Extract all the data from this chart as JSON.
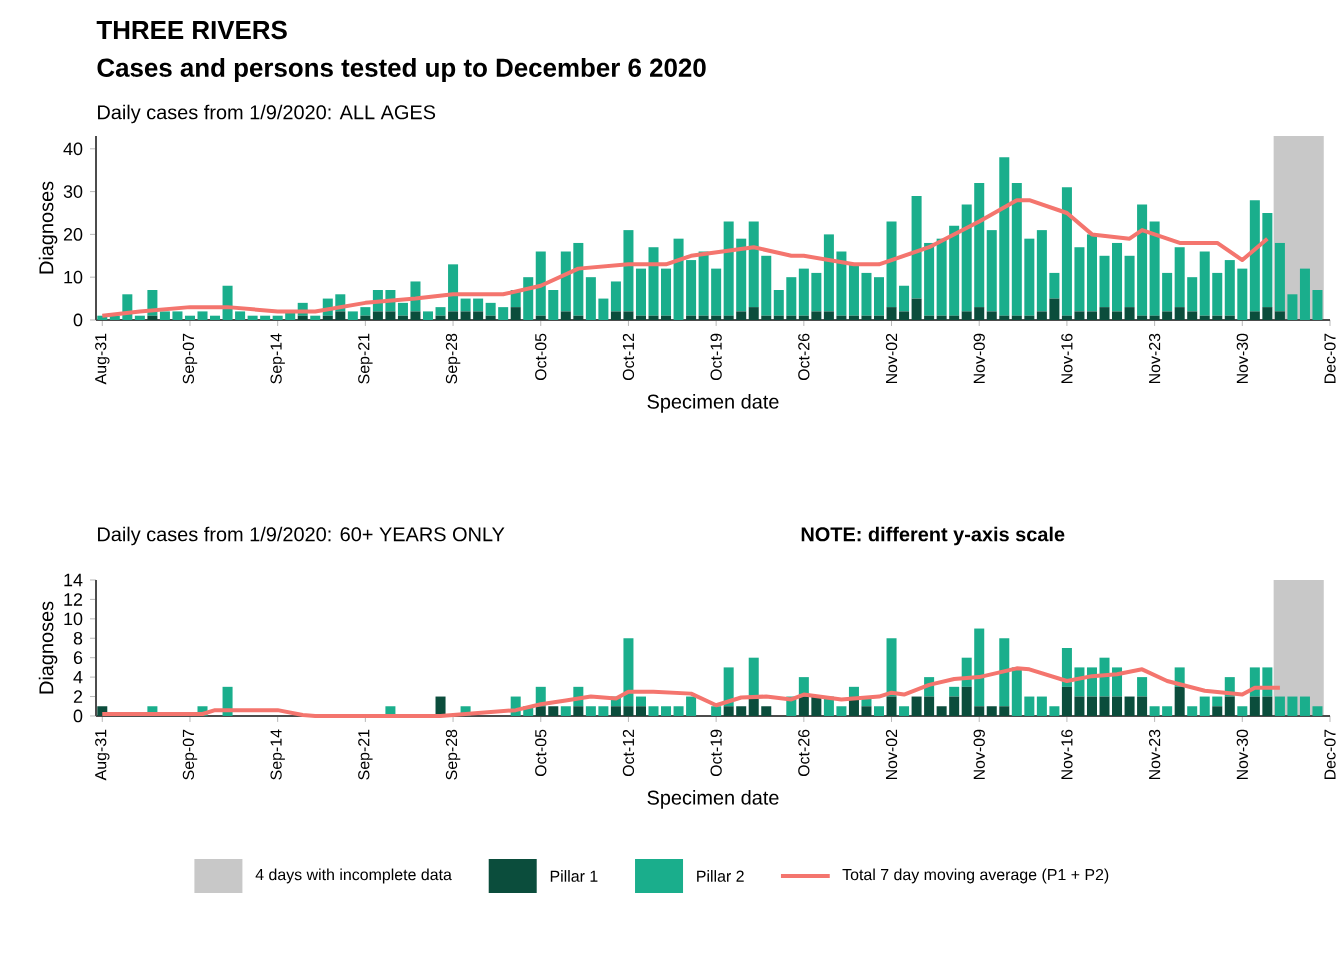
{
  "chart_data": [
    {
      "type": "bar",
      "title": "THREE RIVERS",
      "subtitle": "Cases and persons tested up to December  6 2020",
      "annotations": [
        "Daily cases from 1/9/2020: ALL AGES"
      ],
      "xlabel": "Specimen date",
      "ylabel": "Diagnoses",
      "stacked": true,
      "x": [
        "2020-08-31",
        "2020-09-01",
        "2020-09-02",
        "2020-09-03",
        "2020-09-04",
        "2020-09-05",
        "2020-09-06",
        "2020-09-07",
        "2020-09-08",
        "2020-09-09",
        "2020-09-10",
        "2020-09-11",
        "2020-09-12",
        "2020-09-13",
        "2020-09-14",
        "2020-09-15",
        "2020-09-16",
        "2020-09-17",
        "2020-09-18",
        "2020-09-19",
        "2020-09-20",
        "2020-09-21",
        "2020-09-22",
        "2020-09-23",
        "2020-09-24",
        "2020-09-25",
        "2020-09-26",
        "2020-09-27",
        "2020-09-28",
        "2020-09-29",
        "2020-09-30",
        "2020-10-01",
        "2020-10-02",
        "2020-10-03",
        "2020-10-04",
        "2020-10-05",
        "2020-10-06",
        "2020-10-07",
        "2020-10-08",
        "2020-10-09",
        "2020-10-10",
        "2020-10-11",
        "2020-10-12",
        "2020-10-13",
        "2020-10-14",
        "2020-10-15",
        "2020-10-16",
        "2020-10-17",
        "2020-10-18",
        "2020-10-19",
        "2020-10-20",
        "2020-10-21",
        "2020-10-22",
        "2020-10-23",
        "2020-10-24",
        "2020-10-25",
        "2020-10-26",
        "2020-10-27",
        "2020-10-28",
        "2020-10-29",
        "2020-10-30",
        "2020-10-31",
        "2020-11-01",
        "2020-11-02",
        "2020-11-03",
        "2020-11-04",
        "2020-11-05",
        "2020-11-06",
        "2020-11-07",
        "2020-11-08",
        "2020-11-09",
        "2020-11-10",
        "2020-11-11",
        "2020-11-12",
        "2020-11-13",
        "2020-11-14",
        "2020-11-15",
        "2020-11-16",
        "2020-11-17",
        "2020-11-18",
        "2020-11-19",
        "2020-11-20",
        "2020-11-21",
        "2020-11-22",
        "2020-11-23",
        "2020-11-24",
        "2020-11-25",
        "2020-11-26",
        "2020-11-27",
        "2020-11-28",
        "2020-11-29",
        "2020-11-30",
        "2020-12-01",
        "2020-12-02",
        "2020-12-03",
        "2020-12-04",
        "2020-12-05",
        "2020-12-06"
      ],
      "xlim": [
        "2020-08-30T12:00",
        "2020-12-07"
      ],
      "xticks": [
        {
          "value": "2020-08-31",
          "label": "Aug-31"
        },
        {
          "value": "2020-09-07",
          "label": "Sep-07"
        },
        {
          "value": "2020-09-14",
          "label": "Sep-14"
        },
        {
          "value": "2020-09-21",
          "label": "Sep-21"
        },
        {
          "value": "2020-09-28",
          "label": "Sep-28"
        },
        {
          "value": "2020-10-05",
          "label": "Oct-05"
        },
        {
          "value": "2020-10-12",
          "label": "Oct-12"
        },
        {
          "value": "2020-10-19",
          "label": "Oct-19"
        },
        {
          "value": "2020-10-26",
          "label": "Oct-26"
        },
        {
          "value": "2020-11-02",
          "label": "Nov-02"
        },
        {
          "value": "2020-11-09",
          "label": "Nov-09"
        },
        {
          "value": "2020-11-16",
          "label": "Nov-16"
        },
        {
          "value": "2020-11-23",
          "label": "Nov-23"
        },
        {
          "value": "2020-11-30",
          "label": "Nov-30"
        },
        {
          "value": "2020-12-07",
          "label": "Dec-07"
        }
      ],
      "ylim": [
        0,
        43
      ],
      "yticks": [
        0,
        10,
        20,
        30,
        40
      ],
      "bands": [
        {
          "axis": "x",
          "from": "2020-12-02T12:00",
          "to": "2020-12-06T12:00",
          "color": "#c8c8c8"
        }
      ],
      "series": [
        {
          "color": "#0b4d3c",
          "values": [
            0,
            0,
            0,
            0,
            1,
            0,
            0,
            0,
            0,
            0,
            0,
            0,
            0,
            0,
            0,
            0,
            1,
            0,
            1,
            2,
            0,
            1,
            2,
            2,
            1,
            2,
            0,
            1,
            2,
            2,
            2,
            1,
            0,
            3,
            0,
            1,
            0,
            2,
            1,
            0,
            0,
            2,
            2,
            1,
            1,
            1,
            0,
            1,
            1,
            1,
            1,
            2,
            3,
            1,
            1,
            1,
            1,
            2,
            2,
            1,
            1,
            1,
            1,
            3,
            2,
            5,
            1,
            1,
            1,
            2,
            3,
            2,
            1,
            1,
            1,
            2,
            5,
            1,
            2,
            2,
            3,
            2,
            3,
            1,
            1,
            2,
            3,
            2,
            1,
            1,
            1,
            0,
            2,
            3,
            2,
            0,
            0,
            0
          ]
        },
        {
          "color": "#1aae8c",
          "values": [
            1,
            1,
            6,
            1,
            6,
            2,
            2,
            1,
            2,
            1,
            8,
            2,
            1,
            1,
            1,
            2,
            3,
            1,
            4,
            4,
            2,
            2,
            5,
            5,
            3,
            7,
            2,
            2,
            11,
            3,
            3,
            3,
            3,
            4,
            10,
            15,
            7,
            14,
            17,
            10,
            5,
            7,
            19,
            11,
            16,
            11,
            19,
            13,
            15,
            11,
            22,
            17,
            20,
            14,
            6,
            9,
            11,
            9,
            18,
            15,
            12,
            10,
            9,
            20,
            6,
            24,
            17,
            18,
            21,
            25,
            29,
            19,
            37,
            31,
            18,
            19,
            6,
            30,
            15,
            18,
            12,
            16,
            12,
            26,
            22,
            9,
            14,
            8,
            15,
            10,
            13,
            12,
            26,
            22,
            16,
            6,
            12,
            7
          ]
        },
        {
          "type": "line",
          "color": "#f4756e",
          "x": [
            "2020-08-31",
            "2020-09-03",
            "2020-09-07",
            "2020-09-10",
            "2020-09-14",
            "2020-09-17",
            "2020-09-21",
            "2020-09-25",
            "2020-09-28",
            "2020-10-02",
            "2020-10-05",
            "2020-10-08",
            "2020-10-12",
            "2020-10-15",
            "2020-10-17",
            "2020-10-22",
            "2020-10-25",
            "2020-10-26",
            "2020-10-30",
            "2020-11-01",
            "2020-11-02",
            "2020-11-05",
            "2020-11-09",
            "2020-11-12",
            "2020-11-13",
            "2020-11-16",
            "2020-11-18",
            "2020-11-21",
            "2020-11-22",
            "2020-11-25",
            "2020-11-28",
            "2020-11-30",
            "2020-12-02"
          ],
          "values": [
            1,
            2,
            3,
            3,
            2,
            2,
            4,
            5,
            6,
            6,
            8,
            12,
            13,
            13,
            15,
            17,
            15,
            15,
            13,
            13,
            14,
            17,
            23,
            28,
            28,
            25,
            20,
            19,
            21,
            18,
            18,
            14,
            19
          ]
        }
      ]
    },
    {
      "type": "bar",
      "title": "Daily cases from 1/9/2020: 60+ YEARS ONLY",
      "annotations": [
        "NOTE: different y-axis scale"
      ],
      "xlabel": "Specimen date",
      "ylabel": "Diagnoses",
      "stacked": true,
      "legend": "bottom",
      "x": [
        "2020-08-31",
        "2020-09-01",
        "2020-09-02",
        "2020-09-03",
        "2020-09-04",
        "2020-09-05",
        "2020-09-06",
        "2020-09-07",
        "2020-09-08",
        "2020-09-09",
        "2020-09-10",
        "2020-09-11",
        "2020-09-12",
        "2020-09-13",
        "2020-09-14",
        "2020-09-15",
        "2020-09-16",
        "2020-09-17",
        "2020-09-18",
        "2020-09-19",
        "2020-09-20",
        "2020-09-21",
        "2020-09-22",
        "2020-09-23",
        "2020-09-24",
        "2020-09-25",
        "2020-09-26",
        "2020-09-27",
        "2020-09-28",
        "2020-09-29",
        "2020-09-30",
        "2020-10-01",
        "2020-10-02",
        "2020-10-03",
        "2020-10-04",
        "2020-10-05",
        "2020-10-06",
        "2020-10-07",
        "2020-10-08",
        "2020-10-09",
        "2020-10-10",
        "2020-10-11",
        "2020-10-12",
        "2020-10-13",
        "2020-10-14",
        "2020-10-15",
        "2020-10-16",
        "2020-10-17",
        "2020-10-18",
        "2020-10-19",
        "2020-10-20",
        "2020-10-21",
        "2020-10-22",
        "2020-10-23",
        "2020-10-24",
        "2020-10-25",
        "2020-10-26",
        "2020-10-27",
        "2020-10-28",
        "2020-10-29",
        "2020-10-30",
        "2020-10-31",
        "2020-11-01",
        "2020-11-02",
        "2020-11-03",
        "2020-11-04",
        "2020-11-05",
        "2020-11-06",
        "2020-11-07",
        "2020-11-08",
        "2020-11-09",
        "2020-11-10",
        "2020-11-11",
        "2020-11-12",
        "2020-11-13",
        "2020-11-14",
        "2020-11-15",
        "2020-11-16",
        "2020-11-17",
        "2020-11-18",
        "2020-11-19",
        "2020-11-20",
        "2020-11-21",
        "2020-11-22",
        "2020-11-23",
        "2020-11-24",
        "2020-11-25",
        "2020-11-26",
        "2020-11-27",
        "2020-11-28",
        "2020-11-29",
        "2020-11-30",
        "2020-12-01",
        "2020-12-02",
        "2020-12-03",
        "2020-12-04",
        "2020-12-05",
        "2020-12-06"
      ],
      "xlim": [
        "2020-08-30T12:00",
        "2020-12-07"
      ],
      "xticks": [
        {
          "value": "2020-08-31",
          "label": "Aug-31"
        },
        {
          "value": "2020-09-07",
          "label": "Sep-07"
        },
        {
          "value": "2020-09-14",
          "label": "Sep-14"
        },
        {
          "value": "2020-09-21",
          "label": "Sep-21"
        },
        {
          "value": "2020-09-28",
          "label": "Sep-28"
        },
        {
          "value": "2020-10-05",
          "label": "Oct-05"
        },
        {
          "value": "2020-10-12",
          "label": "Oct-12"
        },
        {
          "value": "2020-10-19",
          "label": "Oct-19"
        },
        {
          "value": "2020-10-26",
          "label": "Oct-26"
        },
        {
          "value": "2020-11-02",
          "label": "Nov-02"
        },
        {
          "value": "2020-11-09",
          "label": "Nov-09"
        },
        {
          "value": "2020-11-16",
          "label": "Nov-16"
        },
        {
          "value": "2020-11-23",
          "label": "Nov-23"
        },
        {
          "value": "2020-11-30",
          "label": "Nov-30"
        },
        {
          "value": "2020-12-07",
          "label": "Dec-07"
        }
      ],
      "ylim": [
        0,
        14
      ],
      "yticks": [
        0,
        2,
        4,
        6,
        8,
        10,
        12,
        14
      ],
      "bands": [
        {
          "axis": "x",
          "from": "2020-12-02T12:00",
          "to": "2020-12-06T12:00",
          "label": "4 days with incomplete data",
          "color": "#c8c8c8"
        }
      ],
      "series": [
        {
          "name": "Pillar 1",
          "color": "#0b4d3c",
          "values": [
            1,
            0,
            0,
            0,
            0,
            0,
            0,
            0,
            0,
            0,
            0,
            0,
            0,
            0,
            0,
            0,
            0,
            0,
            0,
            0,
            0,
            0,
            0,
            0,
            0,
            0,
            0,
            2,
            0,
            0,
            0,
            0,
            0,
            0,
            0,
            1,
            1,
            0,
            1,
            0,
            0,
            1,
            1,
            1,
            0,
            0,
            0,
            0,
            0,
            0,
            1,
            1,
            2,
            1,
            0,
            0,
            2,
            2,
            0,
            0,
            2,
            1,
            0,
            2,
            0,
            2,
            2,
            1,
            2,
            3,
            1,
            1,
            1,
            0,
            0,
            0,
            0,
            3,
            2,
            2,
            2,
            2,
            2,
            2,
            0,
            0,
            3,
            0,
            0,
            1,
            2,
            0,
            2,
            2,
            0,
            0,
            0,
            0
          ]
        },
        {
          "name": "Pillar 2",
          "color": "#1aae8c",
          "values": [
            0,
            0,
            0,
            0,
            1,
            0,
            0,
            0,
            1,
            0,
            3,
            0,
            0,
            0,
            0,
            0,
            0,
            0,
            0,
            0,
            0,
            0,
            0,
            1,
            0,
            0,
            0,
            0,
            0,
            1,
            0,
            0,
            0,
            2,
            1,
            2,
            0,
            1,
            2,
            1,
            1,
            1,
            7,
            1,
            1,
            1,
            1,
            2,
            0,
            1,
            4,
            0,
            4,
            0,
            0,
            2,
            2,
            0,
            2,
            1,
            1,
            1,
            1,
            6,
            1,
            0,
            2,
            0,
            1,
            3,
            8,
            0,
            7,
            5,
            2,
            2,
            1,
            4,
            3,
            3,
            4,
            3,
            0,
            2,
            1,
            1,
            2,
            1,
            2,
            1,
            2,
            1,
            3,
            3,
            2,
            2,
            2,
            1
          ]
        },
        {
          "name": "Total 7 day moving average (P1 + P2)",
          "type": "line",
          "color": "#f4756e",
          "x": [
            "2020-08-31",
            "2020-09-08",
            "2020-09-09",
            "2020-09-14",
            "2020-09-16",
            "2020-09-17",
            "2020-09-27",
            "2020-09-30",
            "2020-10-03",
            "2020-10-05",
            "2020-10-07",
            "2020-10-09",
            "2020-10-11",
            "2020-10-12",
            "2020-10-14",
            "2020-10-17",
            "2020-10-19",
            "2020-10-21",
            "2020-10-23",
            "2020-10-25",
            "2020-10-26",
            "2020-10-29",
            "2020-11-01",
            "2020-11-02",
            "2020-11-03",
            "2020-11-05",
            "2020-11-07",
            "2020-11-09",
            "2020-11-12",
            "2020-11-13",
            "2020-11-16",
            "2020-11-18",
            "2020-11-20",
            "2020-11-22",
            "2020-11-24",
            "2020-11-27",
            "2020-11-30",
            "2020-12-01",
            "2020-12-03"
          ],
          "values": [
            0.2,
            0.2,
            0.6,
            0.6,
            0.1,
            0,
            0,
            0.3,
            0.6,
            1.2,
            1.6,
            2,
            1.8,
            2.5,
            2.5,
            2.3,
            1.1,
            1.9,
            2,
            1.7,
            2.2,
            1.7,
            2,
            2.4,
            2.2,
            3.2,
            3.8,
            4,
            4.9,
            4.8,
            3.6,
            4.1,
            4.3,
            4.8,
            3.6,
            2.6,
            2.2,
            2.9,
            2.9
          ]
        }
      ]
    }
  ]
}
